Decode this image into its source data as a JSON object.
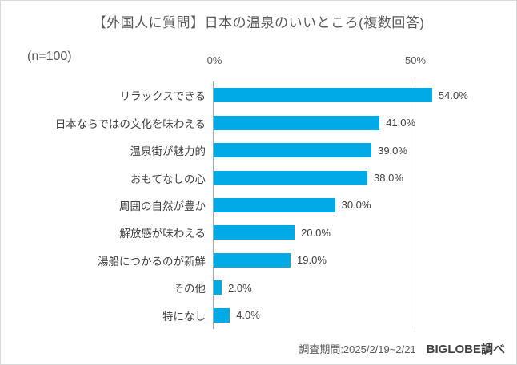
{
  "chart_data": {
    "type": "bar",
    "orientation": "horizontal",
    "title": "【外国人に質問】日本の温泉のいいところ(複数回答)",
    "sample_label": "(n=100)",
    "categories": [
      "リラックスできる",
      "日本ならではの文化を味わえる",
      "温泉街が魅力的",
      "おもてなしの心",
      "周囲の自然が豊か",
      "解放感が味わえる",
      "湯船につかるのが新鮮",
      "その他",
      "特になし"
    ],
    "values": [
      54.0,
      41.0,
      39.0,
      38.0,
      30.0,
      20.0,
      19.0,
      2.0,
      4.0
    ],
    "value_labels": [
      "54.0%",
      "41.0%",
      "39.0%",
      "38.0%",
      "30.0%",
      "20.0%",
      "19.0%",
      "2.0%",
      "4.0%"
    ],
    "xlabel": "",
    "ylabel": "",
    "axis_ticks": [
      "0%",
      "50%"
    ],
    "xlim": [
      0,
      64
    ],
    "grid": "vertical-ticks-only",
    "legend": "none",
    "bar_color": "#00AAE5"
  },
  "footer": {
    "survey_period": "調査期間:2025/2/19~2/21",
    "source": "BIGLOBE調べ"
  },
  "colors": {
    "bar": "#00AAE5",
    "title_text": "#595959",
    "label_text": "#404040",
    "axis_line": "#A6A6A6",
    "gridline": "#D9D9D9",
    "border": "#D9D9D9",
    "background": "#FFFFFF"
  }
}
